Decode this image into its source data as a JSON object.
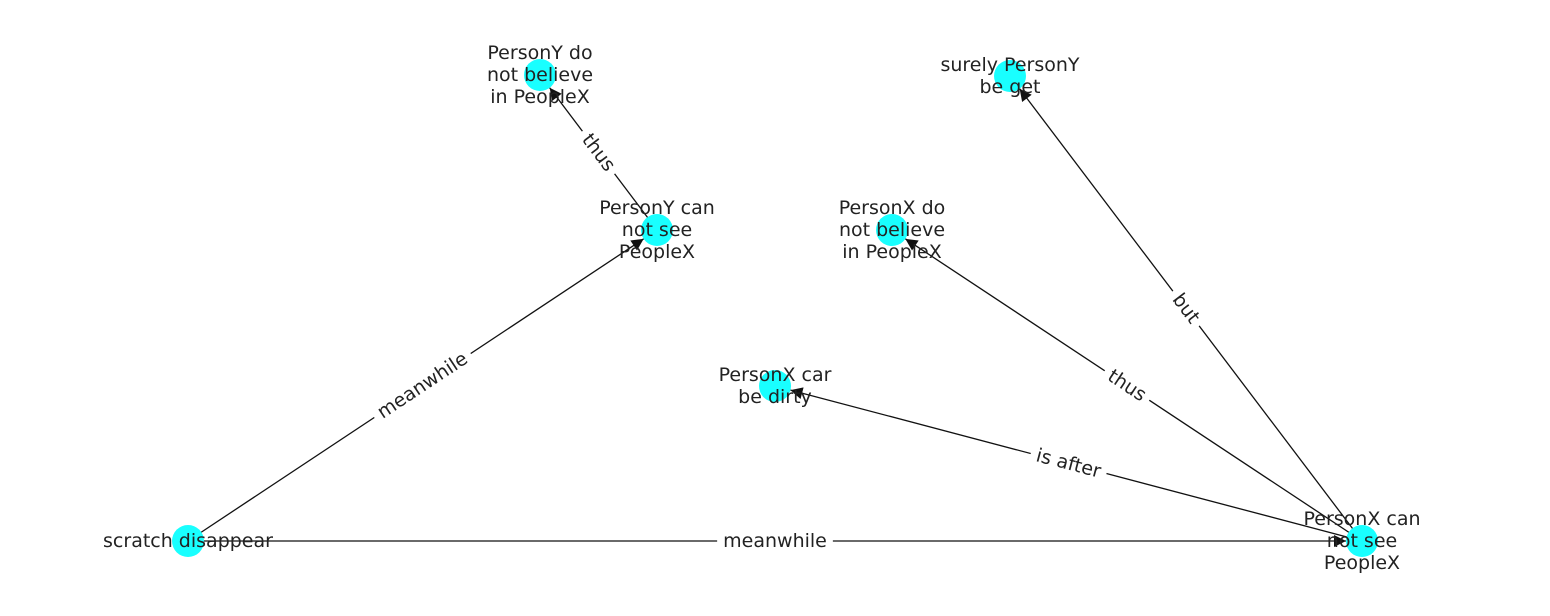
{
  "colors": {
    "node_fill": "#19ffff",
    "edge_stroke": "#111111",
    "text": "#222222",
    "edge_label_bg": "#ffffff"
  },
  "nodes": [
    {
      "id": "n_y_not_believe",
      "lines": [
        "PersonY do",
        "not believe",
        "in PeopleX"
      ]
    },
    {
      "id": "n_y_cannot_see",
      "lines": [
        "PersonY can",
        "not see",
        "PeopleX"
      ]
    },
    {
      "id": "n_surely_y",
      "lines": [
        "surely PersonY",
        "be get"
      ]
    },
    {
      "id": "n_x_not_believe",
      "lines": [
        "PersonX do",
        "not believe",
        "in PeopleX"
      ]
    },
    {
      "id": "n_x_car",
      "lines": [
        "PersonX car",
        "be dirty"
      ]
    },
    {
      "id": "n_scratch",
      "lines": [
        "scratch disappear"
      ]
    },
    {
      "id": "n_x_cannot_see",
      "lines": [
        "PersonX can",
        "not see",
        "PeopleX"
      ]
    }
  ],
  "edges": [
    {
      "source": "n_y_cannot_see",
      "target": "n_y_not_believe",
      "label": "thus"
    },
    {
      "source": "n_scratch",
      "target": "n_y_cannot_see",
      "label": "meanwhile"
    },
    {
      "source": "n_scratch",
      "target": "n_x_cannot_see",
      "label": "meanwhile"
    },
    {
      "source": "n_x_cannot_see",
      "target": "n_surely_y",
      "label": "but"
    },
    {
      "source": "n_x_cannot_see",
      "target": "n_x_not_believe",
      "label": "thus"
    },
    {
      "source": "n_x_cannot_see",
      "target": "n_x_car",
      "label": "is after"
    }
  ]
}
